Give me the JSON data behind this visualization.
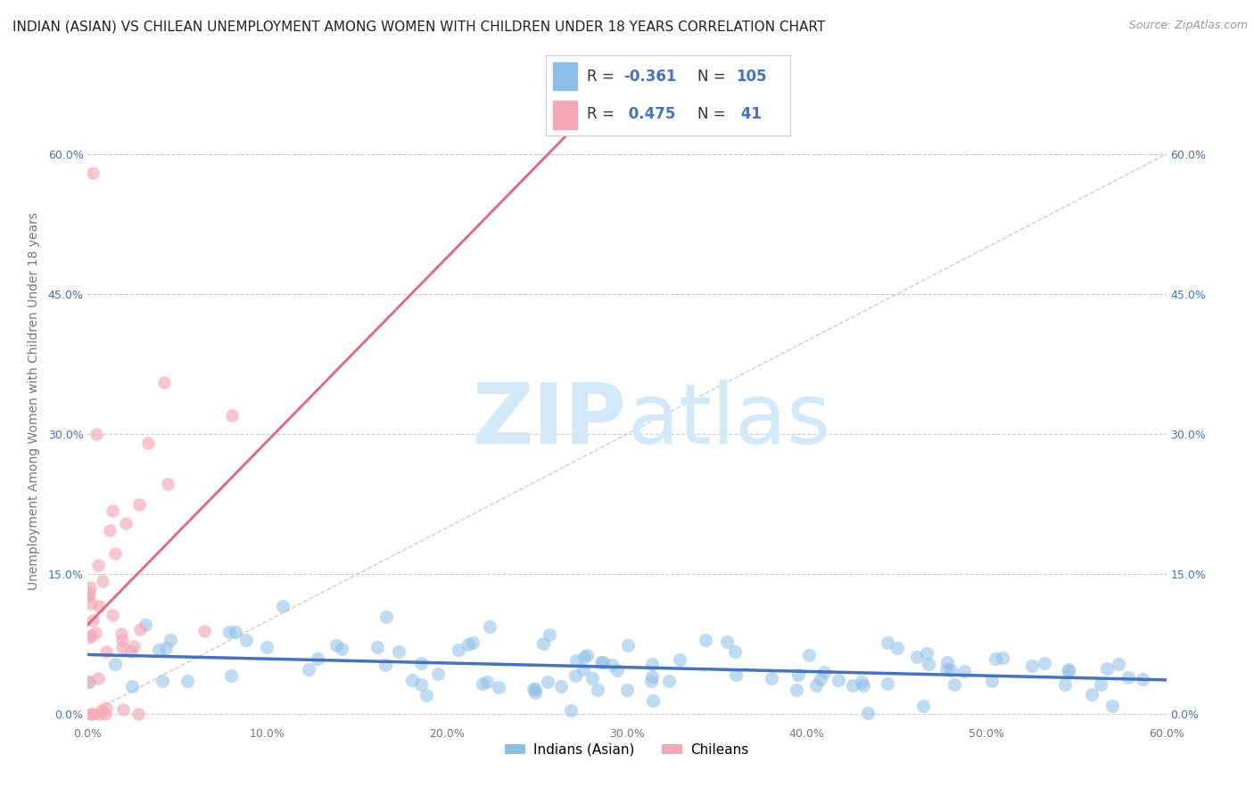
{
  "title": "INDIAN (ASIAN) VS CHILEAN UNEMPLOYMENT AMONG WOMEN WITH CHILDREN UNDER 18 YEARS CORRELATION CHART",
  "source": "Source: ZipAtlas.com",
  "ylabel": "Unemployment Among Women with Children Under 18 years",
  "xlim": [
    0,
    0.6
  ],
  "ylim": [
    -0.01,
    0.68
  ],
  "xtick_vals": [
    0.0,
    0.1,
    0.2,
    0.3,
    0.4,
    0.5,
    0.6
  ],
  "xtick_labels": [
    "0.0%",
    "10.0%",
    "20.0%",
    "30.0%",
    "40.0%",
    "50.0%",
    "60.0%"
  ],
  "ytick_vals": [
    0.0,
    0.15,
    0.3,
    0.45,
    0.6
  ],
  "ytick_labels": [
    "0.0%",
    "15.0%",
    "30.0%",
    "45.0%",
    "60.0%"
  ],
  "blue_R": -0.361,
  "blue_N": 105,
  "pink_R": 0.475,
  "pink_N": 41,
  "blue_color": "#8bbfe8",
  "pink_color": "#f4a7b5",
  "blue_line_color": "#4472c4",
  "pink_line_color": "#e8627a",
  "ref_line_color": "#c0c0c0",
  "legend_label_blue": "Indians (Asian)",
  "legend_label_pink": "Chileans",
  "background_color": "#ffffff",
  "watermark_zip": "ZIP",
  "watermark_atlas": "atlas",
  "watermark_color": "#d0e8f8",
  "title_fontsize": 11,
  "axis_label_fontsize": 10,
  "tick_fontsize": 9,
  "tick_color_blue": "#4472c4",
  "tick_color_gray": "#777777"
}
